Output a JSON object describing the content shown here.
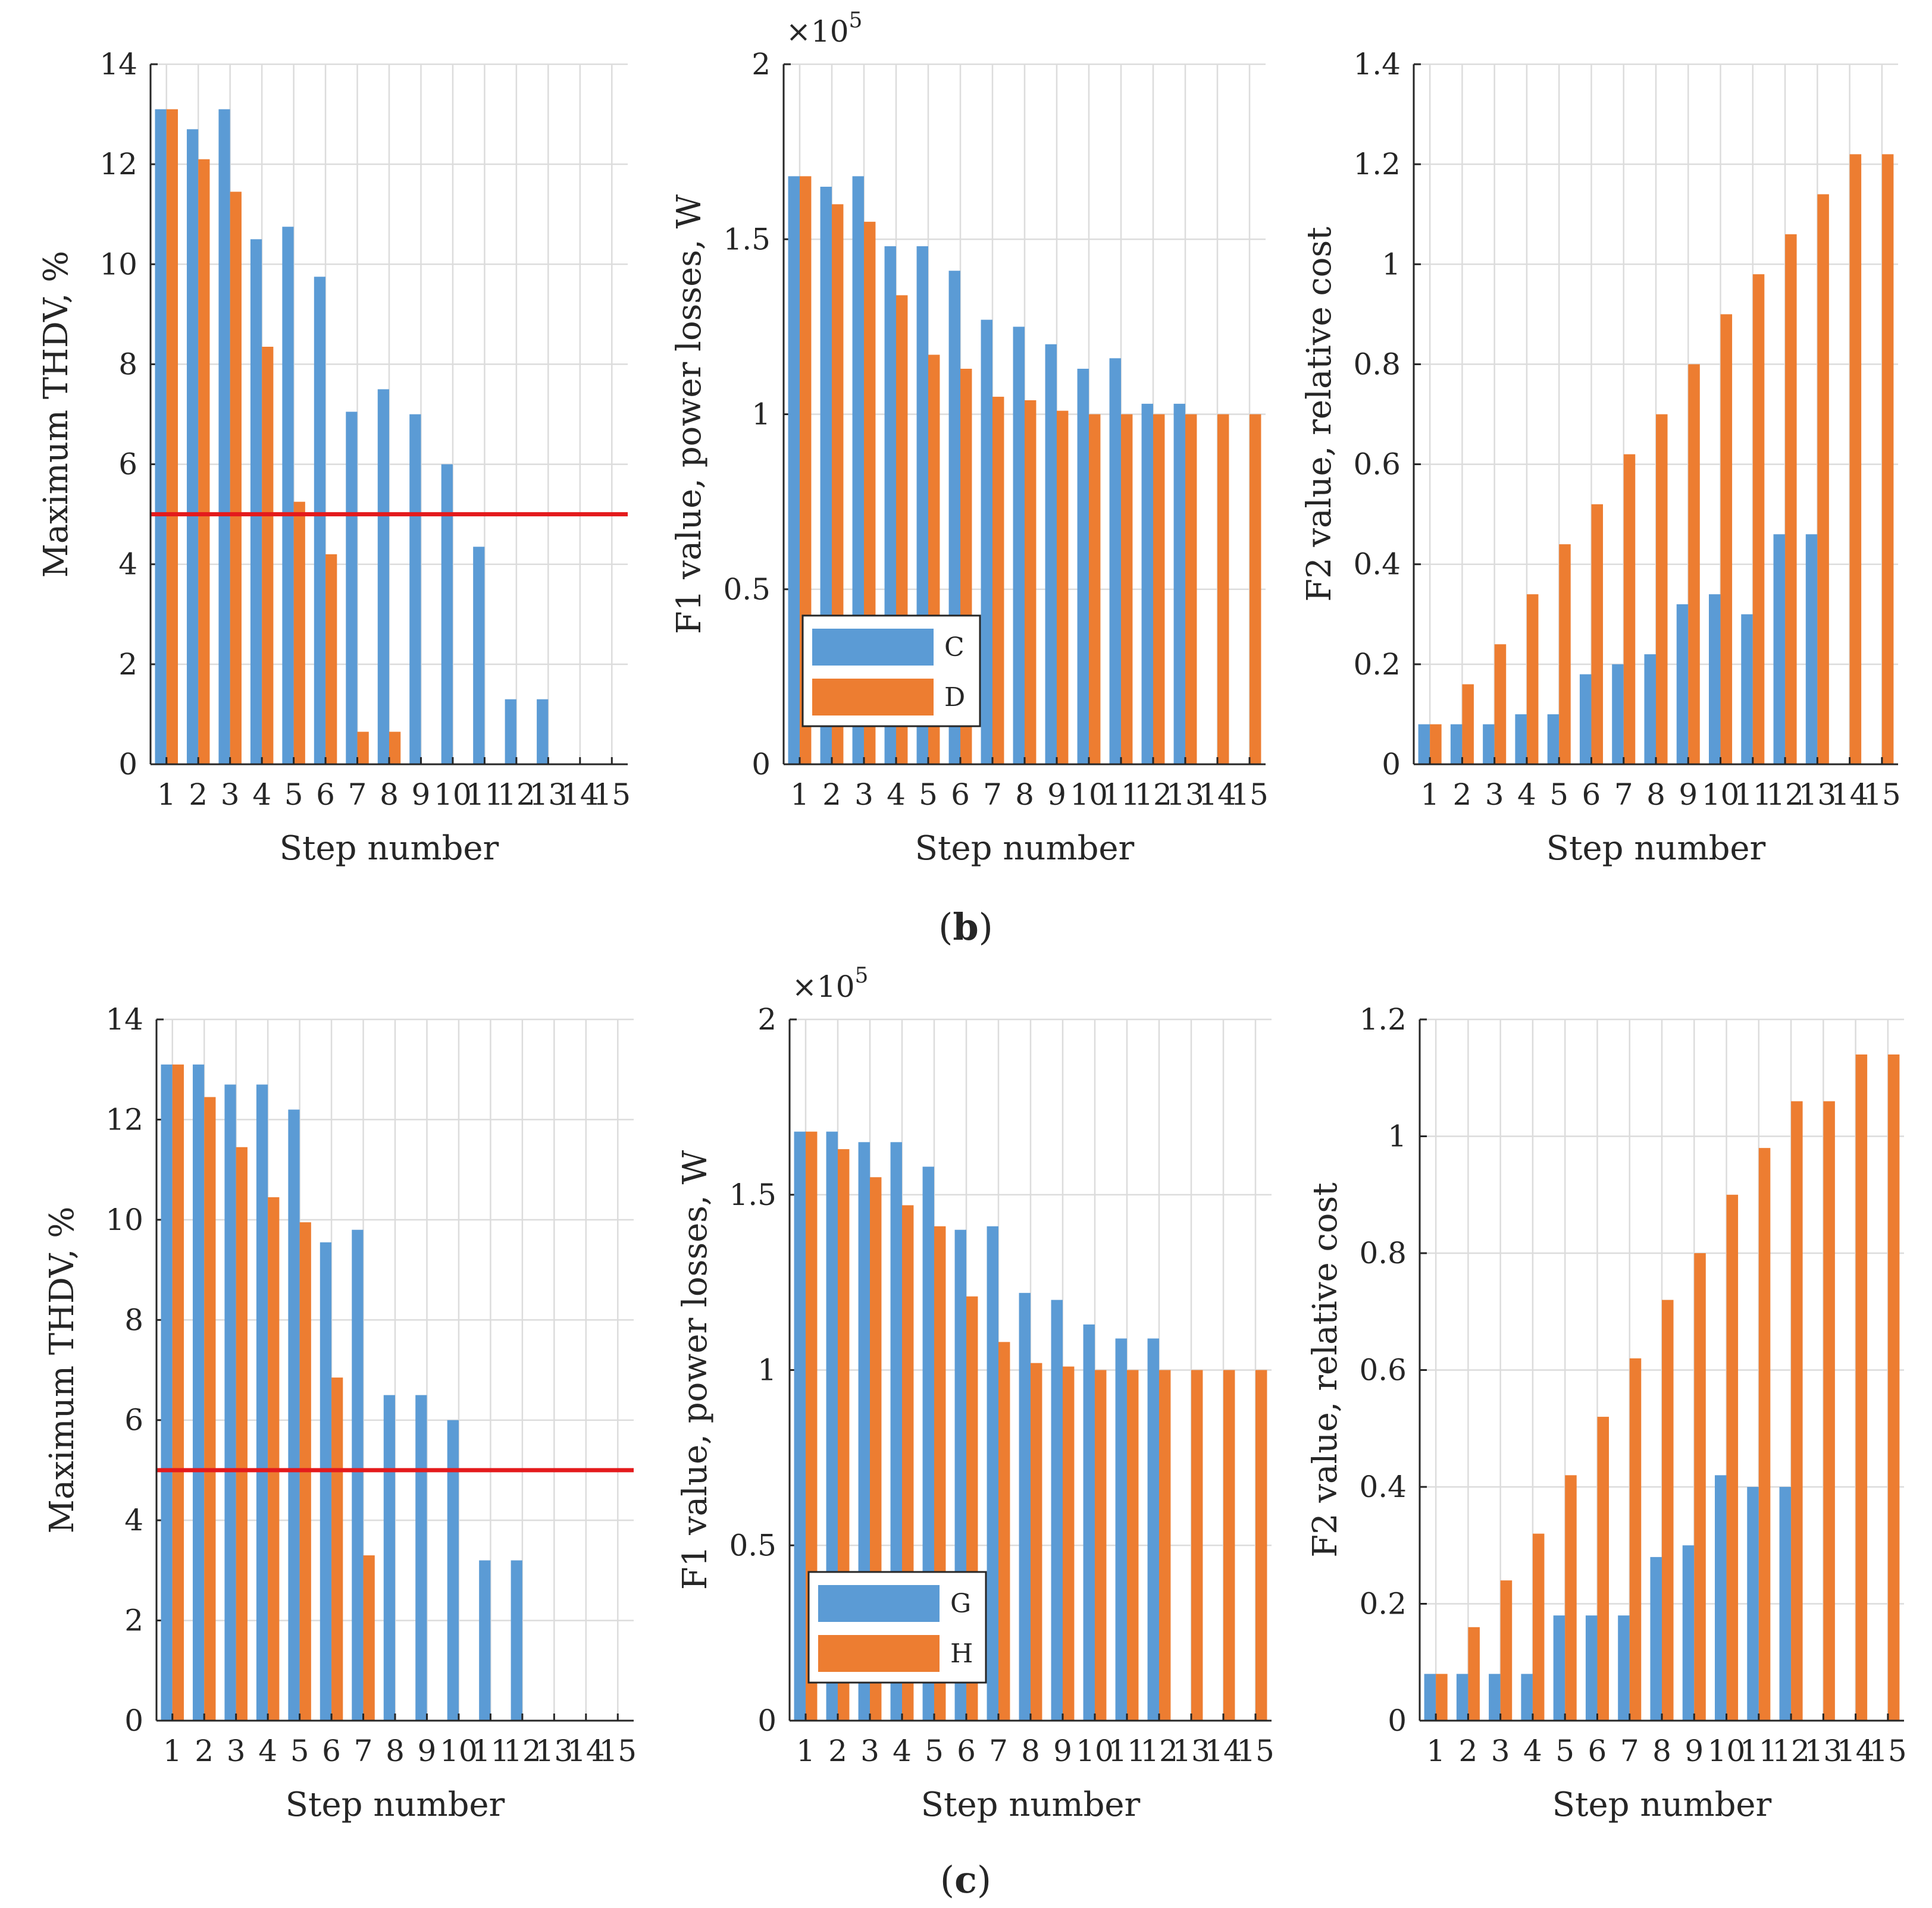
{
  "figure": {
    "captions": [
      {
        "id": "b",
        "open": "(",
        "letter": "b",
        "close": ")"
      },
      {
        "id": "c",
        "open": "(",
        "letter": "c",
        "close": ")"
      }
    ],
    "colors": {
      "series_a": "#5b9bd5",
      "series_b": "#ed7d31",
      "threshold": "#e41a1c",
      "axis": "#262626",
      "grid": "#dcdcdc"
    }
  },
  "chart_data": [
    {
      "id": "b-thdv",
      "type": "bar",
      "title": "",
      "xlabel": "Step number",
      "ylabel": "Maximum THDV, %",
      "categories": [
        "1",
        "2",
        "3",
        "4",
        "5",
        "6",
        "7",
        "8",
        "9",
        "10",
        "11",
        "12",
        "13",
        "14",
        "15"
      ],
      "ylim": [
        0,
        14
      ],
      "yticks": [
        0,
        2,
        4,
        6,
        8,
        10,
        12,
        14
      ],
      "ytick_labels": [
        "0",
        "2",
        "4",
        "6",
        "8",
        "10",
        "12",
        "14"
      ],
      "grid": true,
      "series": [
        {
          "name": "C",
          "values": [
            13.1,
            12.7,
            13.1,
            10.5,
            10.75,
            9.75,
            7.05,
            7.5,
            7.0,
            6.0,
            4.35,
            1.3,
            1.3,
            null,
            null
          ]
        },
        {
          "name": "D",
          "values": [
            13.1,
            12.1,
            11.45,
            8.35,
            5.25,
            4.2,
            0.65,
            0.65,
            null,
            null,
            null,
            null,
            null,
            null,
            null
          ]
        }
      ],
      "threshold": 5
    },
    {
      "id": "b-f1",
      "type": "bar",
      "title": "",
      "xlabel": "Step number",
      "ylabel": "F1 value, power losses, W",
      "exponent": {
        "base": "×10",
        "power": "5"
      },
      "categories": [
        "1",
        "2",
        "3",
        "4",
        "5",
        "6",
        "7",
        "8",
        "9",
        "10",
        "11",
        "12",
        "13",
        "14",
        "15"
      ],
      "ylim": [
        0,
        2
      ],
      "yticks": [
        0,
        0.5,
        1,
        1.5,
        2
      ],
      "ytick_labels": [
        "0",
        "0.5",
        "1",
        "1.5",
        "2"
      ],
      "grid": true,
      "legend": {
        "placement": "lower-left",
        "entries": [
          "C",
          "D"
        ]
      },
      "series": [
        {
          "name": "C",
          "values": [
            1.68,
            1.65,
            1.68,
            1.48,
            1.48,
            1.41,
            1.27,
            1.25,
            1.2,
            1.13,
            1.16,
            1.03,
            1.03,
            null,
            null
          ]
        },
        {
          "name": "D",
          "values": [
            1.68,
            1.6,
            1.55,
            1.34,
            1.17,
            1.13,
            1.05,
            1.04,
            1.01,
            1.0,
            1.0,
            1.0,
            1.0,
            1.0,
            1.0
          ]
        }
      ]
    },
    {
      "id": "b-f2",
      "type": "bar",
      "title": "",
      "xlabel": "Step number",
      "ylabel": "F2 value, relative cost",
      "categories": [
        "1",
        "2",
        "3",
        "4",
        "5",
        "6",
        "7",
        "8",
        "9",
        "10",
        "11",
        "12",
        "13",
        "14",
        "15"
      ],
      "ylim": [
        0,
        1.4
      ],
      "yticks": [
        0,
        0.2,
        0.4,
        0.6,
        0.8,
        1,
        1.2,
        1.4
      ],
      "ytick_labels": [
        "0",
        "0.2",
        "0.4",
        "0.6",
        "0.8",
        "1",
        "1.2",
        "1.4"
      ],
      "grid": true,
      "series": [
        {
          "name": "C",
          "values": [
            0.08,
            0.08,
            0.08,
            0.1,
            0.1,
            0.18,
            0.2,
            0.22,
            0.32,
            0.34,
            0.3,
            0.46,
            0.46,
            null,
            null
          ]
        },
        {
          "name": "D",
          "values": [
            0.08,
            0.16,
            0.24,
            0.34,
            0.44,
            0.52,
            0.62,
            0.7,
            0.8,
            0.9,
            0.98,
            1.06,
            1.14,
            1.22,
            1.22
          ]
        }
      ]
    },
    {
      "id": "c-thdv",
      "type": "bar",
      "title": "",
      "xlabel": "Step number",
      "ylabel": "Maximum THDV, %",
      "categories": [
        "1",
        "2",
        "3",
        "4",
        "5",
        "6",
        "7",
        "8",
        "9",
        "10",
        "11",
        "12",
        "13",
        "14",
        "15"
      ],
      "ylim": [
        0,
        14
      ],
      "yticks": [
        0,
        2,
        4,
        6,
        8,
        10,
        12,
        14
      ],
      "ytick_labels": [
        "0",
        "2",
        "4",
        "6",
        "8",
        "10",
        "12",
        "14"
      ],
      "grid": true,
      "series": [
        {
          "name": "G",
          "values": [
            13.1,
            13.1,
            12.7,
            12.7,
            12.2,
            9.55,
            9.8,
            6.5,
            6.5,
            6.0,
            3.2,
            3.2,
            null,
            null,
            null
          ]
        },
        {
          "name": "H",
          "values": [
            13.1,
            12.45,
            11.45,
            10.45,
            9.95,
            6.85,
            3.3,
            null,
            null,
            null,
            null,
            null,
            null,
            null,
            null
          ]
        }
      ],
      "threshold": 5
    },
    {
      "id": "c-f1",
      "type": "bar",
      "title": "",
      "xlabel": "Step number",
      "ylabel": "F1 value, power losses, W",
      "exponent": {
        "base": "×10",
        "power": "5"
      },
      "categories": [
        "1",
        "2",
        "3",
        "4",
        "5",
        "6",
        "7",
        "8",
        "9",
        "10",
        "11",
        "12",
        "13",
        "14",
        "15"
      ],
      "ylim": [
        0,
        2
      ],
      "yticks": [
        0,
        0.5,
        1,
        1.5,
        2
      ],
      "ytick_labels": [
        "0",
        "0.5",
        "1",
        "1.5",
        "2"
      ],
      "grid": true,
      "legend": {
        "placement": "lower-left",
        "entries": [
          "G",
          "H"
        ]
      },
      "series": [
        {
          "name": "G",
          "values": [
            1.68,
            1.68,
            1.65,
            1.65,
            1.58,
            1.4,
            1.41,
            1.22,
            1.2,
            1.13,
            1.09,
            1.09,
            null,
            null,
            null
          ]
        },
        {
          "name": "H",
          "values": [
            1.68,
            1.63,
            1.55,
            1.47,
            1.41,
            1.21,
            1.08,
            1.02,
            1.01,
            1.0,
            1.0,
            1.0,
            1.0,
            1.0,
            1.0
          ]
        }
      ]
    },
    {
      "id": "c-f2",
      "type": "bar",
      "title": "",
      "xlabel": "Step number",
      "ylabel": "F2 value, relative cost",
      "categories": [
        "1",
        "2",
        "3",
        "4",
        "5",
        "6",
        "7",
        "8",
        "9",
        "10",
        "11",
        "12",
        "13",
        "14",
        "15"
      ],
      "ylim": [
        0,
        1.2
      ],
      "yticks": [
        0,
        0.2,
        0.4,
        0.6,
        0.8,
        1,
        1.2
      ],
      "ytick_labels": [
        "0",
        "0.2",
        "0.4",
        "0.6",
        "0.8",
        "1",
        "1.2"
      ],
      "grid": true,
      "series": [
        {
          "name": "G",
          "values": [
            0.08,
            0.08,
            0.08,
            0.08,
            0.18,
            0.18,
            0.18,
            0.28,
            0.3,
            0.42,
            0.4,
            0.4,
            null,
            null,
            null
          ]
        },
        {
          "name": "H",
          "values": [
            0.08,
            0.16,
            0.24,
            0.32,
            0.42,
            0.52,
            0.62,
            0.72,
            0.8,
            0.9,
            0.98,
            1.06,
            1.06,
            1.14,
            1.14
          ]
        }
      ]
    }
  ]
}
